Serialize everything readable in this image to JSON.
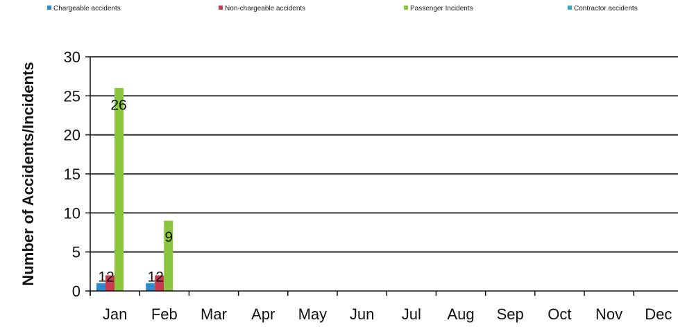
{
  "chart_data": {
    "type": "bar",
    "title": "",
    "xlabel": "",
    "ylabel": "Number of Accidents/Incidents",
    "categories": [
      "Jan",
      "Feb",
      "Mar",
      "Apr",
      "May",
      "Jun",
      "Jul",
      "Aug",
      "Sep",
      "Oct",
      "Nov",
      "Dec"
    ],
    "ylim": [
      0,
      30
    ],
    "yticks": [
      0,
      5,
      10,
      15,
      20,
      25,
      30
    ],
    "grid": true,
    "legend_position": "top",
    "series": [
      {
        "name": "Chargeable accidents",
        "color": "#2e8bd0",
        "values": [
          1,
          1,
          null,
          null,
          null,
          null,
          null,
          null,
          null,
          null,
          null,
          null
        ]
      },
      {
        "name": "Non-chargeable accidents",
        "color": "#c83a4e",
        "values": [
          2,
          2,
          null,
          null,
          null,
          null,
          null,
          null,
          null,
          null,
          null,
          null
        ]
      },
      {
        "name": "Passenger Incidents",
        "color": "#8cc63f",
        "values": [
          26,
          9,
          null,
          null,
          null,
          null,
          null,
          null,
          null,
          null,
          null,
          null
        ]
      },
      {
        "name": "Contractor accidents",
        "color": "#37a6c8",
        "values": [
          null,
          null,
          null,
          null,
          null,
          null,
          null,
          null,
          null,
          null,
          null,
          null
        ]
      }
    ],
    "data_labels": [
      {
        "category": "Jan",
        "text": "12"
      },
      {
        "category": "Jan",
        "text": "26"
      },
      {
        "category": "Feb",
        "text": "12"
      },
      {
        "category": "Feb",
        "text": "9"
      }
    ]
  }
}
